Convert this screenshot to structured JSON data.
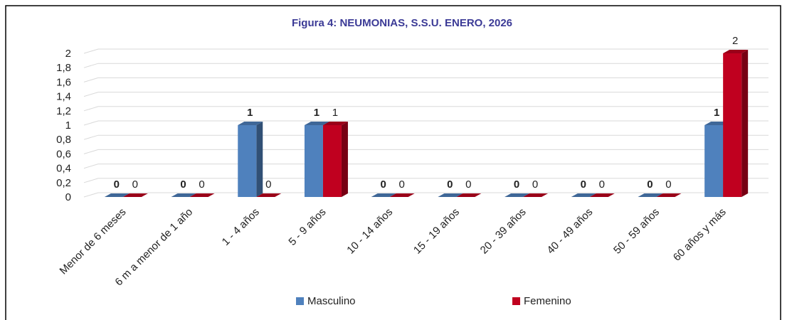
{
  "chart_data": {
    "type": "bar3d",
    "title": "Figura 4: NEUMONIAS, S.S.U. ENERO, 2026",
    "categories": [
      "Menor de 6 meses",
      "6 m a menor de 1 año",
      "1 - 4 años",
      "5 - 9 años",
      "10 - 14 años",
      "15 - 19 años",
      "20 - 39 años",
      "40 - 49 años",
      "50 - 59 años",
      "60 años y más"
    ],
    "series": [
      {
        "name": "Masculino",
        "color": "#4f81bd",
        "values": [
          0,
          0,
          1,
          1,
          0,
          0,
          0,
          0,
          0,
          1
        ]
      },
      {
        "name": "Femenino",
        "color": "#c0001f",
        "values": [
          0,
          0,
          0,
          1,
          0,
          0,
          0,
          0,
          0,
          2
        ]
      }
    ],
    "ylim": [
      0,
      2
    ],
    "yticks": [
      0,
      {
        "value": 0.2,
        "label": "0,2"
      },
      {
        "value": 0.4,
        "label": "0,4"
      },
      {
        "value": 0.6,
        "label": "0,6"
      },
      {
        "value": 0.8,
        "label": "0,8"
      },
      1,
      {
        "value": 1.2,
        "label": "1,2"
      },
      {
        "value": 1.4,
        "label": "1,4"
      },
      {
        "value": 1.6,
        "label": "1,6"
      },
      {
        "value": 1.8,
        "label": "1,8"
      },
      2
    ],
    "grid": true,
    "legend": "bottom"
  }
}
